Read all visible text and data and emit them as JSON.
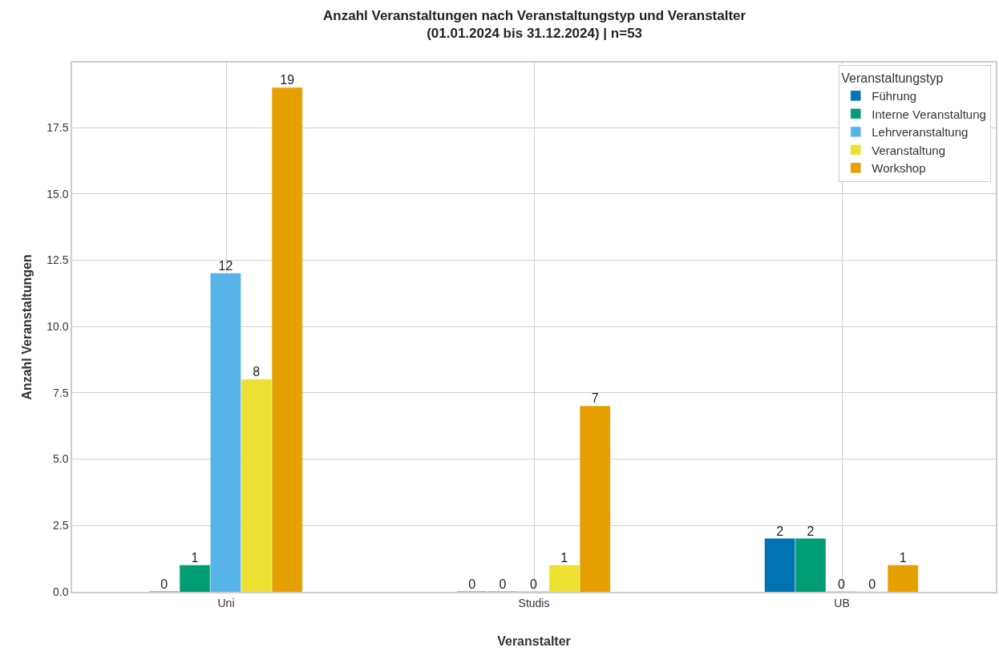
{
  "chart_data": {
    "type": "bar",
    "title": "Anzahl Veranstaltungen nach Veranstaltungstyp und Veranstalter\n(01.01.2024 bis 31.12.2024) | n=53",
    "xlabel": "Veranstalter",
    "ylabel": "Anzahl Veranstaltungen",
    "legend_title": "Veranstaltungstyp",
    "categories": [
      "Uni",
      "Studis",
      "UB"
    ],
    "series": [
      {
        "name": "Führung",
        "color": "#0173b2",
        "values": [
          0,
          0,
          2
        ]
      },
      {
        "name": "Interne Veranstaltung",
        "color": "#029e73",
        "values": [
          1,
          0,
          2
        ]
      },
      {
        "name": "Lehrveranstaltung",
        "color": "#56b4e9",
        "values": [
          12,
          0,
          0
        ]
      },
      {
        "name": "Veranstaltung",
        "color": "#ece133",
        "values": [
          8,
          1,
          0
        ]
      },
      {
        "name": "Workshop",
        "color": "#e5a000",
        "values": [
          19,
          7,
          1
        ]
      }
    ],
    "ylim": [
      0,
      19.95
    ],
    "yticks": [
      {
        "value": 0,
        "label": "0.0"
      },
      2.5,
      {
        "value": 5,
        "label": "5.0"
      },
      7.5,
      {
        "value": 10,
        "label": "10.0"
      },
      12.5,
      {
        "value": 15,
        "label": "15.0"
      },
      17.5
    ],
    "grid": true,
    "legend": "top right",
    "data_labels": true
  }
}
